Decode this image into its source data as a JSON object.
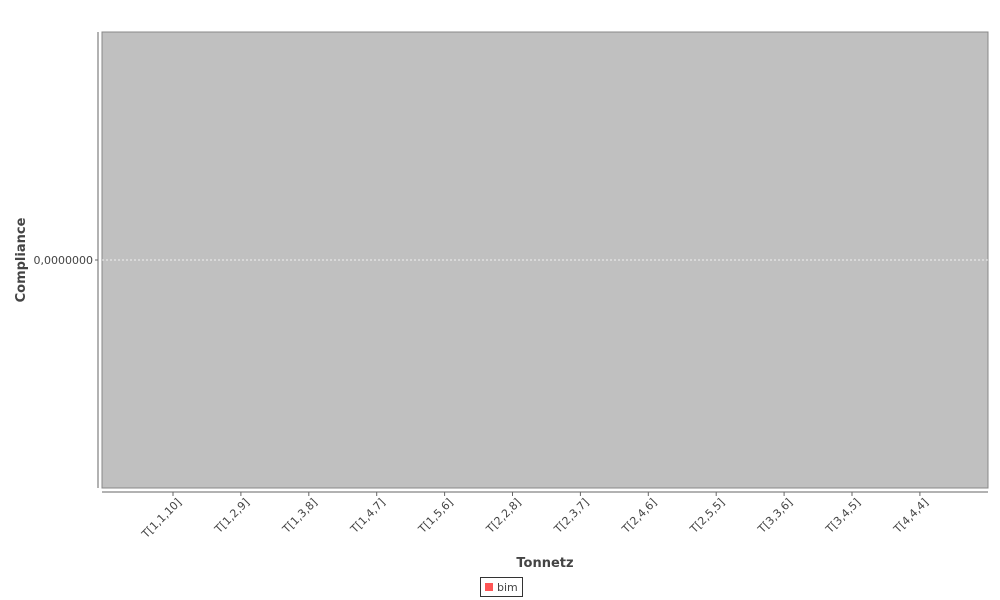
{
  "chart_data": {
    "type": "bar",
    "title": "",
    "xlabel": "Tonnetz",
    "ylabel": "Compliance",
    "categories": [
      "T[1,1,10]",
      "T[1,2,9]",
      "T[1,3,8]",
      "T[1,4,7]",
      "T[1,5,6]",
      "T[2,2,8]",
      "T[2,3,7]",
      "T[2,4,6]",
      "T[2,5,5]",
      "T[3,3,6]",
      "T[3,4,5]",
      "T[4,4,4]"
    ],
    "series": [
      {
        "name": "bim",
        "values": [
          0,
          0,
          0,
          0,
          0,
          0,
          0,
          0,
          0,
          0,
          0,
          0
        ]
      }
    ],
    "yticks": [
      "0,0000000"
    ],
    "grid": true,
    "legend_position": "bottom",
    "colors": {
      "plot_background": "#c0c0c0",
      "gridline": "#ffffff",
      "series": "#ff5555",
      "axis": "#666666"
    }
  }
}
